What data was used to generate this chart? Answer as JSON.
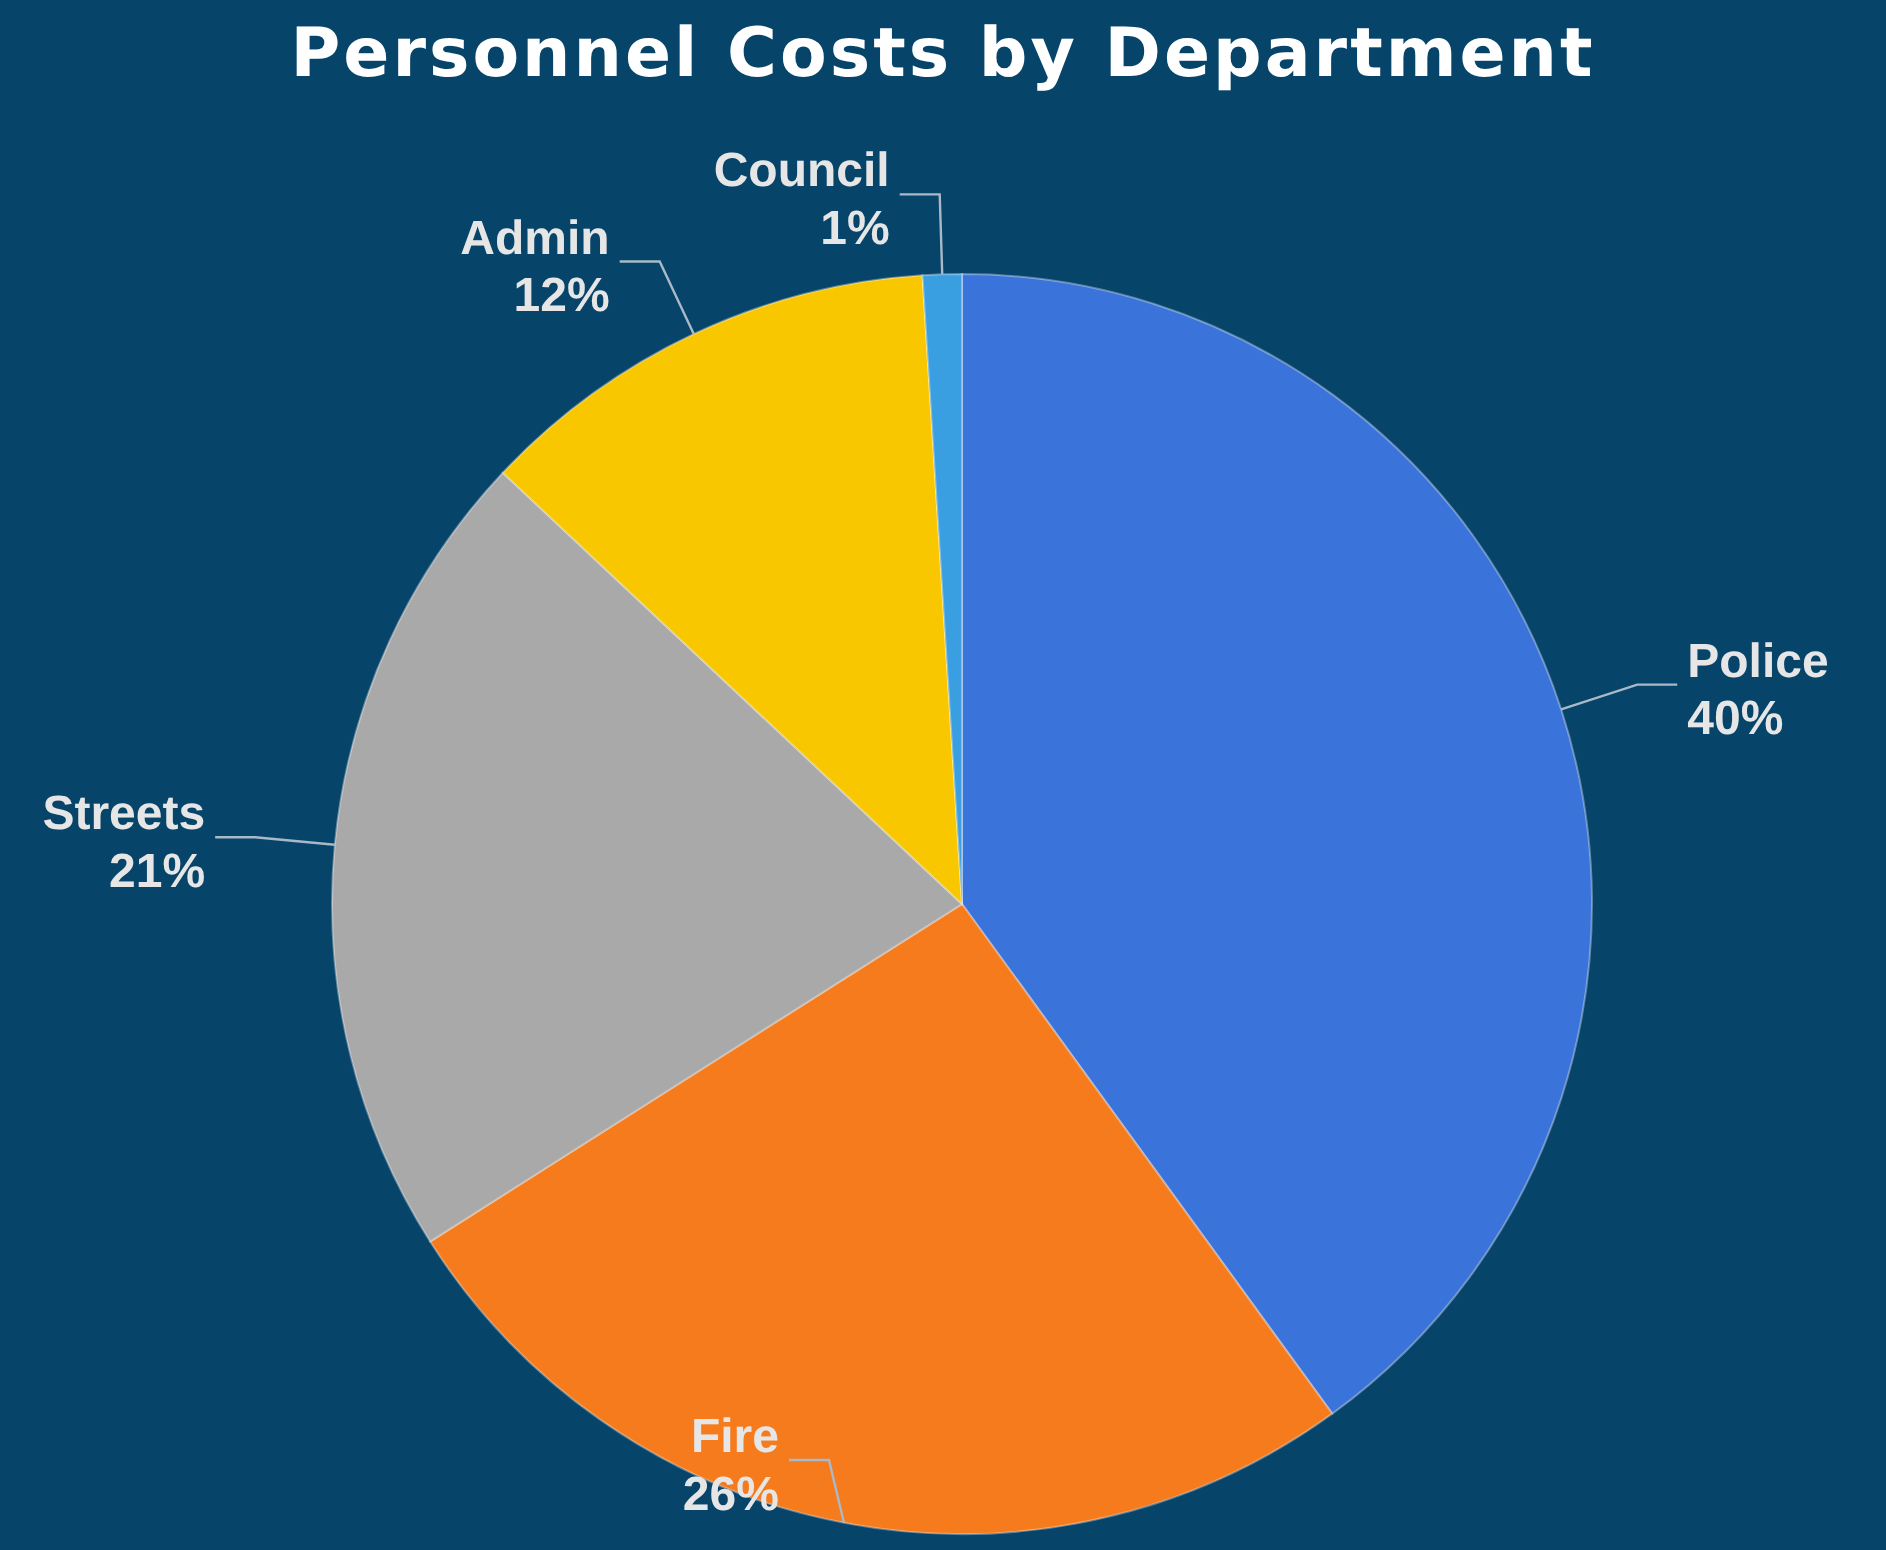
{
  "chart_data": {
    "type": "pie",
    "title": "Personnel Costs by Department",
    "categories": [
      "Police",
      "Fire",
      "Streets",
      "Admin",
      "Council"
    ],
    "values": [
      40,
      26,
      21,
      12,
      1
    ],
    "value_labels": [
      "40%",
      "26%",
      "21%",
      "12%",
      "1%"
    ],
    "colors": [
      "#3a73d9",
      "#f57b1d",
      "#a9a9a9",
      "#f9c700",
      "#3a9fe0"
    ]
  }
}
